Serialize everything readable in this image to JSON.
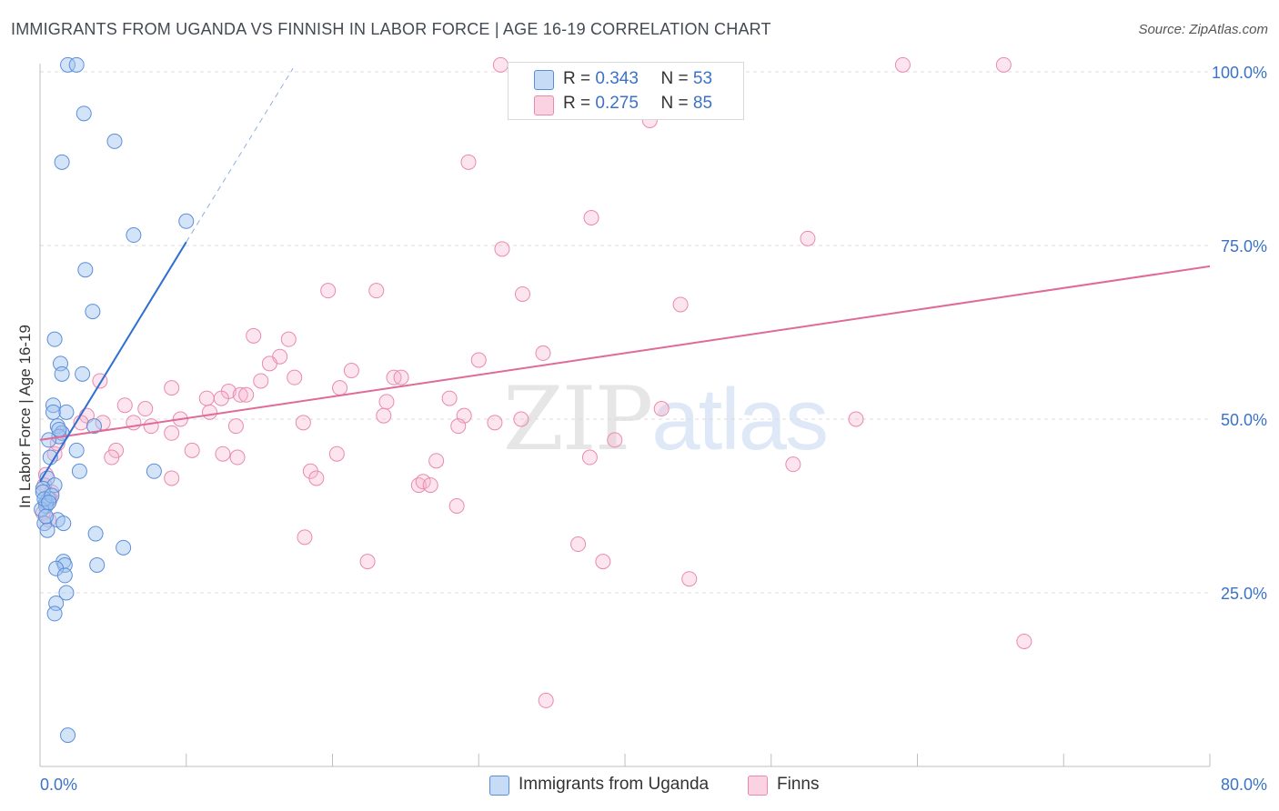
{
  "title": "IMMIGRANTS FROM UGANDA VS FINNISH IN LABOR FORCE | AGE 16-19 CORRELATION CHART",
  "source": "Source: ZipAtlas.com",
  "watermark": {
    "zip": "ZIP",
    "atlas": "atlas"
  },
  "legend": {
    "r_label": "R =",
    "n_label": "N =",
    "series": [
      {
        "r": "0.343",
        "n": "53"
      },
      {
        "r": "0.275",
        "n": "85"
      }
    ]
  },
  "colors": {
    "uganda_fill": "rgba(160,195,240,0.45)",
    "uganda_stroke": "#5b8ed8",
    "uganda_line": "#2f6fd0",
    "finns_fill": "rgba(246,180,205,0.35)",
    "finns_stroke": "#e98aad",
    "finns_line": "#e06a98",
    "tick_label": "#3a72c9",
    "grid": "#dcdcdc"
  },
  "chart_data": {
    "type": "scatter",
    "title": "IMMIGRANTS FROM UGANDA VS FINNISH IN LABOR FORCE | AGE 16-19 CORRELATION CHART",
    "xlabel": "",
    "ylabel": "In Labor Force | Age 16-19",
    "xlim": [
      0,
      80
    ],
    "ylim": [
      0,
      102
    ],
    "x_tick_labels": [
      "0.0%",
      "80.0%"
    ],
    "y_ticks": [
      {
        "value": 25,
        "label": "25.0%"
      },
      {
        "value": 50,
        "label": "50.0%"
      },
      {
        "value": 75,
        "label": "75.0%"
      },
      {
        "value": 100,
        "label": "100.0%"
      }
    ],
    "grid": true,
    "legend_position": "bottom-center",
    "series": [
      {
        "name": "Immigrants from Uganda",
        "r": 0.343,
        "n": 53,
        "trend": {
          "x0": 0.0,
          "y0": 41.0,
          "x1": 10.0,
          "y1": 75.5,
          "dash_to_x": 17.3,
          "dash_to_y": 100.5
        },
        "points": [
          [
            1.9,
            101.0
          ],
          [
            2.5,
            101.0
          ],
          [
            3.0,
            94.0
          ],
          [
            5.1,
            90.0
          ],
          [
            1.5,
            87.0
          ],
          [
            10.0,
            78.5
          ],
          [
            6.4,
            76.5
          ],
          [
            3.1,
            71.5
          ],
          [
            3.6,
            65.5
          ],
          [
            1.0,
            61.5
          ],
          [
            1.4,
            58.0
          ],
          [
            1.5,
            56.5
          ],
          [
            2.9,
            56.5
          ],
          [
            0.9,
            52.0
          ],
          [
            0.9,
            51.0
          ],
          [
            1.8,
            51.0
          ],
          [
            1.2,
            49.0
          ],
          [
            1.5,
            48.0
          ],
          [
            1.3,
            47.5
          ],
          [
            0.6,
            47.0
          ],
          [
            3.7,
            49.0
          ],
          [
            0.7,
            44.5
          ],
          [
            2.5,
            45.5
          ],
          [
            0.5,
            41.5
          ],
          [
            1.0,
            40.5
          ],
          [
            0.2,
            40.0
          ],
          [
            0.6,
            38.5
          ],
          [
            0.4,
            38.0
          ],
          [
            0.2,
            39.5
          ],
          [
            2.7,
            42.5
          ],
          [
            7.8,
            42.5
          ],
          [
            0.4,
            37.5
          ],
          [
            0.1,
            37.0
          ],
          [
            0.3,
            35.0
          ],
          [
            1.2,
            35.5
          ],
          [
            1.6,
            35.0
          ],
          [
            0.5,
            34.0
          ],
          [
            3.8,
            33.5
          ],
          [
            5.7,
            31.5
          ],
          [
            1.6,
            29.5
          ],
          [
            1.7,
            29.0
          ],
          [
            1.1,
            28.5
          ],
          [
            3.9,
            29.0
          ],
          [
            1.7,
            27.5
          ],
          [
            1.8,
            25.0
          ],
          [
            1.1,
            23.5
          ],
          [
            1.0,
            22.0
          ],
          [
            1.9,
            4.5
          ],
          [
            0.3,
            38.5
          ],
          [
            0.8,
            39.0
          ],
          [
            0.4,
            36.0
          ],
          [
            0.6,
            38.0
          ],
          [
            1.3,
            48.5
          ]
        ]
      },
      {
        "name": "Finns",
        "r": 0.275,
        "n": 85,
        "trend": {
          "x0": 0.0,
          "y0": 47.0,
          "x1": 80.0,
          "y1": 72.0
        },
        "points": [
          [
            31.5,
            101.0
          ],
          [
            59.0,
            101.0
          ],
          [
            65.9,
            101.0
          ],
          [
            41.7,
            93.0
          ],
          [
            29.3,
            87.0
          ],
          [
            37.7,
            79.0
          ],
          [
            52.5,
            76.0
          ],
          [
            31.6,
            74.5
          ],
          [
            19.7,
            68.5
          ],
          [
            23.0,
            68.5
          ],
          [
            33.0,
            68.0
          ],
          [
            43.8,
            66.5
          ],
          [
            14.6,
            62.0
          ],
          [
            17.0,
            61.5
          ],
          [
            34.4,
            59.5
          ],
          [
            16.4,
            59.0
          ],
          [
            30.0,
            58.5
          ],
          [
            15.7,
            58.0
          ],
          [
            21.3,
            57.0
          ],
          [
            17.4,
            56.0
          ],
          [
            4.1,
            55.5
          ],
          [
            15.1,
            55.5
          ],
          [
            24.2,
            56.0
          ],
          [
            24.7,
            56.0
          ],
          [
            9.0,
            54.5
          ],
          [
            12.9,
            54.0
          ],
          [
            20.5,
            54.5
          ],
          [
            13.7,
            53.5
          ],
          [
            14.1,
            53.5
          ],
          [
            11.4,
            53.0
          ],
          [
            12.4,
            53.0
          ],
          [
            23.7,
            52.5
          ],
          [
            28.0,
            53.0
          ],
          [
            5.8,
            52.0
          ],
          [
            7.2,
            51.5
          ],
          [
            11.6,
            51.0
          ],
          [
            42.5,
            51.5
          ],
          [
            3.2,
            50.5
          ],
          [
            9.6,
            50.0
          ],
          [
            2.8,
            49.5
          ],
          [
            4.3,
            49.5
          ],
          [
            6.4,
            49.5
          ],
          [
            18.0,
            49.5
          ],
          [
            23.5,
            50.5
          ],
          [
            29.0,
            50.5
          ],
          [
            32.9,
            50.0
          ],
          [
            55.8,
            50.0
          ],
          [
            7.6,
            49.0
          ],
          [
            13.4,
            49.0
          ],
          [
            28.6,
            49.0
          ],
          [
            31.1,
            49.5
          ],
          [
            9.0,
            48.0
          ],
          [
            1.5,
            48.0
          ],
          [
            39.3,
            47.0
          ],
          [
            10.4,
            45.5
          ],
          [
            5.2,
            45.5
          ],
          [
            12.5,
            45.0
          ],
          [
            13.5,
            44.5
          ],
          [
            4.9,
            44.5
          ],
          [
            20.3,
            45.0
          ],
          [
            37.6,
            44.5
          ],
          [
            1.0,
            45.0
          ],
          [
            0.4,
            42.0
          ],
          [
            27.1,
            44.0
          ],
          [
            51.5,
            43.5
          ],
          [
            18.5,
            42.5
          ],
          [
            18.9,
            41.5
          ],
          [
            9.0,
            41.5
          ],
          [
            25.9,
            40.5
          ],
          [
            26.2,
            41.0
          ],
          [
            26.7,
            40.5
          ],
          [
            0.8,
            39.5
          ],
          [
            0.7,
            38.5
          ],
          [
            0.2,
            36.5
          ],
          [
            0.6,
            35.5
          ],
          [
            28.5,
            37.5
          ],
          [
            18.1,
            33.0
          ],
          [
            36.8,
            32.0
          ],
          [
            22.4,
            29.5
          ],
          [
            38.5,
            29.5
          ],
          [
            44.4,
            27.0
          ],
          [
            67.3,
            18.0
          ],
          [
            34.6,
            9.5
          ],
          [
            0.3,
            40.5
          ],
          [
            1.2,
            46.5
          ]
        ]
      }
    ]
  }
}
